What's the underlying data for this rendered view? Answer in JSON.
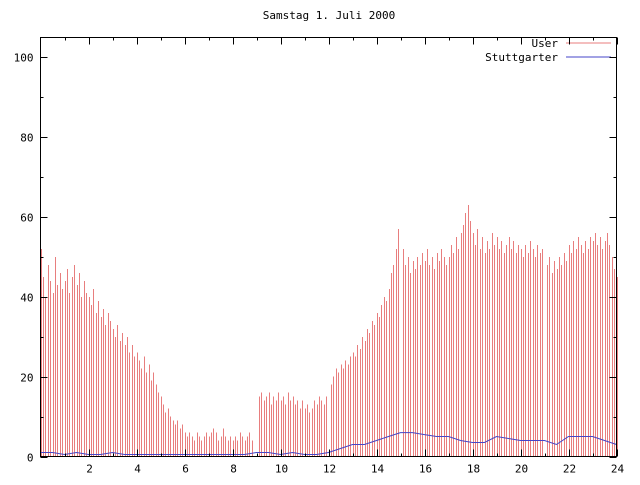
{
  "chart_data": {
    "type": "bar",
    "title": "Samstag 1. Juli 2000",
    "xlabel": "",
    "ylabel": "",
    "xlim": [
      0,
      24
    ],
    "ylim": [
      0,
      105
    ],
    "x_ticks": [
      2,
      4,
      6,
      8,
      10,
      12,
      14,
      16,
      18,
      20,
      22,
      24
    ],
    "y_ticks": [
      0,
      20,
      40,
      60,
      80,
      100
    ],
    "grid": false,
    "legend_position": "top-right",
    "axis_color": "#000000",
    "background_color": "#ffffff",
    "series": [
      {
        "name": "User",
        "type": "impulses",
        "color": "#e87e7e",
        "x_start": 0,
        "x_step": 0.1,
        "values": [
          52,
          45,
          40,
          48,
          44,
          41,
          50,
          43,
          46,
          42,
          44,
          47,
          41,
          45,
          48,
          43,
          46,
          40,
          44,
          41,
          40,
          38,
          42,
          36,
          39,
          35,
          37,
          33,
          36,
          34,
          32,
          30,
          33,
          29,
          31,
          28,
          30,
          26,
          28,
          25,
          26,
          24,
          22,
          25,
          21,
          23,
          19,
          21,
          18,
          16,
          15,
          13,
          11,
          12,
          10,
          9,
          8,
          9,
          7,
          8,
          6,
          5,
          6,
          5,
          4,
          6,
          5,
          4,
          5,
          6,
          5,
          6,
          7,
          6,
          4,
          5,
          7,
          5,
          4,
          5,
          4,
          5,
          4,
          6,
          5,
          4,
          5,
          6,
          4,
          null,
          null,
          15,
          16,
          14,
          15,
          16,
          13,
          15,
          14,
          16,
          14,
          15,
          13,
          16,
          14,
          15,
          13,
          14,
          12,
          14,
          12,
          13,
          11,
          12,
          14,
          13,
          15,
          14,
          13,
          15,
          null,
          18,
          20,
          22,
          21,
          23,
          22,
          24,
          23,
          25,
          26,
          25,
          28,
          27,
          30,
          29,
          32,
          31,
          34,
          33,
          36,
          35,
          38,
          40,
          39,
          42,
          46,
          48,
          52,
          57,
          null,
          52,
          48,
          50,
          46,
          49,
          47,
          50,
          48,
          51,
          49,
          52,
          48,
          50,
          47,
          51,
          49,
          52,
          50,
          48,
          50,
          53,
          51,
          55,
          52,
          56,
          58,
          61,
          63,
          59,
          56,
          53,
          57,
          52,
          55,
          51,
          54,
          52,
          56,
          53,
          55,
          52,
          54,
          51,
          53,
          55,
          52,
          54,
          51,
          53,
          52,
          50,
          53,
          51,
          54,
          52,
          50,
          53,
          51,
          52,
          null,
          48,
          50,
          46,
          49,
          47,
          50,
          48,
          51,
          49,
          53,
          51,
          54,
          52,
          55,
          53,
          51,
          54,
          52,
          55,
          54,
          56,
          53,
          55,
          52,
          54,
          56,
          53,
          50,
          47,
          45
        ]
      },
      {
        "name": "Stuttgarter",
        "type": "line",
        "color": "#4646c8",
        "x_start": 0,
        "x_step": 0.5,
        "values": [
          1,
          1,
          0.5,
          1,
          0.5,
          0.5,
          1,
          0.5,
          0.5,
          0.5,
          0.5,
          0.5,
          0.5,
          0.5,
          0.5,
          0.5,
          0.5,
          0.5,
          1,
          1,
          0.5,
          1,
          0.5,
          0.5,
          1,
          2,
          3,
          3,
          4,
          5,
          6,
          6,
          5.5,
          5,
          5,
          4,
          3.5,
          3.5,
          5,
          4.5,
          4,
          4,
          4,
          3,
          5,
          5,
          5,
          4,
          3
        ]
      }
    ]
  }
}
